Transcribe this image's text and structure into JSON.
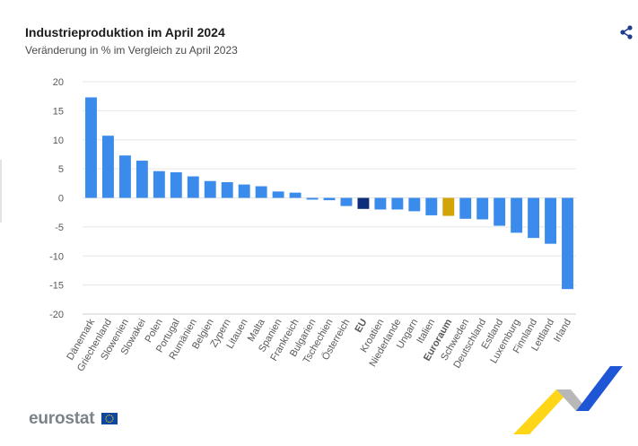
{
  "header": {
    "title": "Industrieproduktion im April 2024",
    "subtitle": "Veränderung in % im Vergleich zu April 2023"
  },
  "branding": {
    "logo_text": "eurostat",
    "flag_icon": "eu-flag-icon"
  },
  "icons": {
    "share": "share-icon"
  },
  "colors": {
    "country": "#3b8bec",
    "eu": "#0e2d7a",
    "euroraum": "#d1a408",
    "grid": "#e6e6e6",
    "axis_text": "#595959"
  },
  "chart_data": {
    "type": "bar",
    "title": "Industrieproduktion im April 2024",
    "subtitle": "Veränderung in % im Vergleich zu April 2023",
    "xlabel": "",
    "ylabel": "",
    "ylim": [
      -20,
      20
    ],
    "yticks": [
      20,
      15,
      10,
      5,
      0,
      -5,
      -10,
      -15,
      -20
    ],
    "grid": true,
    "categories": [
      "Dänemark",
      "Griechenland",
      "Slowenien",
      "Slowakei",
      "Polen",
      "Portugal",
      "Rumänien",
      "Belgien",
      "Zypern",
      "Litauen",
      "Malta",
      "Spanien",
      "Frankreich",
      "Bulgarien",
      "Tschechien",
      "Österreich",
      "EU",
      "Kroatien",
      "Niederlande",
      "Ungarn",
      "Italien",
      "Euroraum",
      "Schweden",
      "Deutschland",
      "Estland",
      "Luxemburg",
      "Finnland",
      "Lettland",
      "Irland"
    ],
    "values": [
      17.3,
      10.7,
      7.3,
      6.4,
      4.6,
      4.4,
      3.7,
      2.9,
      2.7,
      2.3,
      2.0,
      1.1,
      0.9,
      -0.3,
      -0.4,
      -1.4,
      -1.9,
      -2.0,
      -2.0,
      -2.3,
      -3.0,
      -3.1,
      -3.6,
      -3.7,
      -4.8,
      -6.0,
      -6.9,
      -7.9,
      -15.7
    ],
    "highlight": {
      "EU": "eu",
      "Euroraum": "euroraum"
    },
    "bold_labels": [
      "EU",
      "Euroraum"
    ]
  }
}
